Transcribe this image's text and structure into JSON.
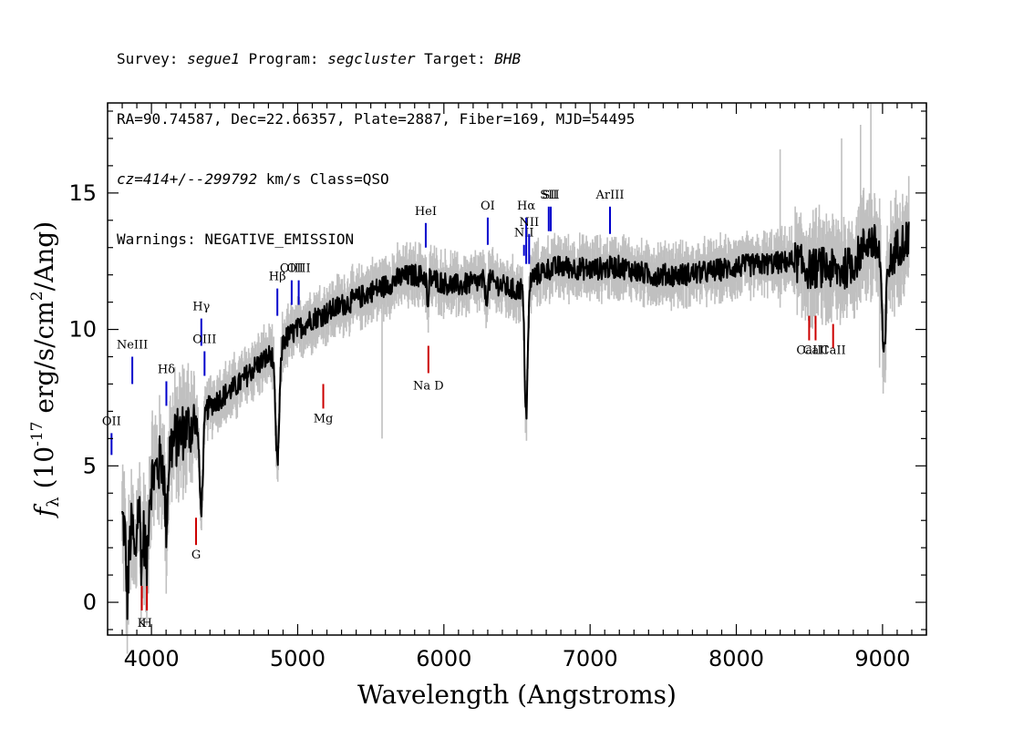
{
  "header": {
    "line1": {
      "survey_label": "Survey: ",
      "survey": "segue1",
      "program_label": " Program: ",
      "program": "segcluster",
      "target_label": " Target: ",
      "target": "BHB"
    },
    "line2": "RA=90.74587, Dec=22.66357, Plate=2887, Fiber=169, MJD=54495",
    "line3": {
      "cz": "cz=414+/--299792",
      "rest": " km/s Class=QSO"
    },
    "line4": "Warnings: NEGATIVE_EMISSION"
  },
  "chart_data": {
    "type": "line",
    "xlabel": "Wavelength (Angstroms)",
    "ylabel_parts": {
      "f": "f",
      "sub": "λ",
      "pre": " (10",
      "exp1": "-17",
      "mid": " erg/s/cm",
      "exp2": "2",
      "post": "/Ang)"
    },
    "xlim": [
      3700,
      9300
    ],
    "ylim": [
      -1.2,
      18.3
    ],
    "xticks": [
      4000,
      5000,
      6000,
      7000,
      8000,
      9000
    ],
    "yticks": [
      0,
      5,
      10,
      15
    ],
    "colors": {
      "flux": "#000000",
      "noise": "#c0c0c0",
      "emission": "#0000cc",
      "absorption": "#cc0000"
    },
    "continuum_knots": [
      [
        3800,
        3.0
      ],
      [
        3850,
        2.2
      ],
      [
        3900,
        3.8
      ],
      [
        3950,
        2.5
      ],
      [
        4000,
        4.5
      ],
      [
        4100,
        5.5
      ],
      [
        4200,
        6.2
      ],
      [
        4300,
        6.6
      ],
      [
        4400,
        7.2
      ],
      [
        4500,
        7.6
      ],
      [
        4600,
        8.0
      ],
      [
        4700,
        8.6
      ],
      [
        4800,
        9.0
      ],
      [
        4900,
        9.6
      ],
      [
        5000,
        10.0
      ],
      [
        5100,
        10.4
      ],
      [
        5200,
        10.6
      ],
      [
        5300,
        10.9
      ],
      [
        5400,
        11.1
      ],
      [
        5500,
        11.4
      ],
      [
        5600,
        11.6
      ],
      [
        5700,
        11.9
      ],
      [
        5800,
        12.0
      ],
      [
        5900,
        11.9
      ],
      [
        6000,
        11.7
      ],
      [
        6100,
        11.6
      ],
      [
        6200,
        11.7
      ],
      [
        6300,
        11.8
      ],
      [
        6400,
        11.6
      ],
      [
        6500,
        11.4
      ],
      [
        6600,
        11.9
      ],
      [
        6700,
        12.2
      ],
      [
        6800,
        12.3
      ],
      [
        7000,
        12.2
      ],
      [
        7200,
        12.3
      ],
      [
        7400,
        12.0
      ],
      [
        7600,
        12.0
      ],
      [
        7800,
        12.1
      ],
      [
        8000,
        12.3
      ],
      [
        8200,
        12.4
      ],
      [
        8400,
        12.5
      ],
      [
        8500,
        12.2
      ],
      [
        8600,
        12.3
      ],
      [
        8700,
        12.1
      ],
      [
        8800,
        12.4
      ],
      [
        8900,
        13.3
      ],
      [
        8950,
        13.1
      ],
      [
        9000,
        12.6
      ],
      [
        9050,
        12.4
      ],
      [
        9100,
        13.0
      ],
      [
        9180,
        13.4
      ]
    ],
    "absorption_features": [
      {
        "wave": 3835,
        "depth": 2.2,
        "width": 8
      },
      {
        "wave": 3889,
        "depth": 2.0,
        "width": 9
      },
      {
        "wave": 3933,
        "depth": 1.6,
        "width": 6
      },
      {
        "wave": 3968,
        "depth": 2.0,
        "width": 7
      },
      {
        "wave": 4101,
        "depth": 2.6,
        "width": 10
      },
      {
        "wave": 4340,
        "depth": 3.4,
        "width": 12
      },
      {
        "wave": 4861,
        "depth": 4.2,
        "width": 14
      },
      {
        "wave": 5577,
        "depth": 0.0,
        "width": 3
      },
      {
        "wave": 5890,
        "depth": 1.4,
        "width": 5
      },
      {
        "wave": 6290,
        "depth": 0.8,
        "width": 6
      },
      {
        "wave": 6563,
        "depth": 4.8,
        "width": 11
      },
      {
        "wave": 9010,
        "depth": 3.8,
        "width": 12
      }
    ],
    "noise_spikes": [
      {
        "wave": 5577,
        "low": 6.0,
        "high": 11.8
      },
      {
        "wave": 8300,
        "low": 10.8,
        "high": 16.6
      },
      {
        "wave": 8720,
        "low": 10.8,
        "high": 17.0
      },
      {
        "wave": 8850,
        "low": 11.2,
        "high": 17.5
      },
      {
        "wave": 8920,
        "low": 11.0,
        "high": 18.3
      },
      {
        "wave": 8980,
        "low": 8.6,
        "high": 14.8
      }
    ],
    "emission_lines": [
      {
        "label": "OII",
        "wave": 3727,
        "y1": 5.4,
        "y2": 6.2,
        "label_y": 6.5
      },
      {
        "label": "NeIII",
        "wave": 3869,
        "y1": 8.0,
        "y2": 9.0,
        "label_y": 9.3
      },
      {
        "label": "Hδ",
        "wave": 4102,
        "y1": 7.2,
        "y2": 8.1,
        "label_y": 8.4
      },
      {
        "label": "Hγ",
        "wave": 4341,
        "y1": 9.4,
        "y2": 10.4,
        "label_y": 10.7
      },
      {
        "label": "OIII",
        "wave": 4363,
        "y1": 8.3,
        "y2": 9.2,
        "label_y": 9.5
      },
      {
        "label": "Hβ",
        "wave": 4861,
        "y1": 10.5,
        "y2": 11.5,
        "label_y": 11.8
      },
      {
        "label": "OIII",
        "wave": 4959,
        "y1": 10.9,
        "y2": 11.8,
        "label_y": 12.1
      },
      {
        "label": "OIII",
        "wave": 5007,
        "y1": 10.9,
        "y2": 11.8,
        "label_y": 12.1
      },
      {
        "label": "HeI",
        "wave": 5876,
        "y1": 13.0,
        "y2": 13.9,
        "label_y": 14.2
      },
      {
        "label": "OI",
        "wave": 6300,
        "y1": 13.1,
        "y2": 14.1,
        "label_y": 14.4
      },
      {
        "label": "NII",
        "wave": 6548,
        "y1": 12.7,
        "y2": 13.1,
        "label_y": 13.4
      },
      {
        "label": "Hα",
        "wave": 6563,
        "y1": 12.4,
        "y2": 14.1,
        "label_y": 14.4
      },
      {
        "label": "NII",
        "wave": 6583,
        "y1": 12.4,
        "y2": 13.5,
        "label_y": 13.8
      },
      {
        "label": "SII",
        "wave": 6717,
        "y1": 13.6,
        "y2": 14.5,
        "label_y": 14.8
      },
      {
        "label": "SII",
        "wave": 6731,
        "y1": 13.6,
        "y2": 14.5,
        "label_y": 14.8
      },
      {
        "label": "ArIII",
        "wave": 7136,
        "y1": 13.5,
        "y2": 14.5,
        "label_y": 14.8
      }
    ],
    "absorption_lines": [
      {
        "label": "K",
        "wave": 3934,
        "y1": -0.3,
        "y2": 0.6,
        "label_y": -0.9
      },
      {
        "label": "H",
        "wave": 3969,
        "y1": -0.3,
        "y2": 0.6,
        "label_y": -0.9
      },
      {
        "label": "G",
        "wave": 4305,
        "y1": 2.1,
        "y2": 3.1,
        "label_y": 1.6
      },
      {
        "label": "Mg",
        "wave": 5175,
        "y1": 7.1,
        "y2": 8.0,
        "label_y": 6.6
      },
      {
        "label": "Na D",
        "wave": 5894,
        "y1": 8.4,
        "y2": 9.4,
        "label_y": 7.8
      },
      {
        "label": "CaII",
        "wave": 8498,
        "y1": 9.6,
        "y2": 10.5,
        "label_y": 9.1
      },
      {
        "label": "CaII",
        "wave": 8542,
        "y1": 9.6,
        "y2": 10.5,
        "label_y": 9.1
      },
      {
        "label": "CaII",
        "wave": 8662,
        "y1": 9.3,
        "y2": 10.2,
        "label_y": 9.1
      }
    ]
  }
}
